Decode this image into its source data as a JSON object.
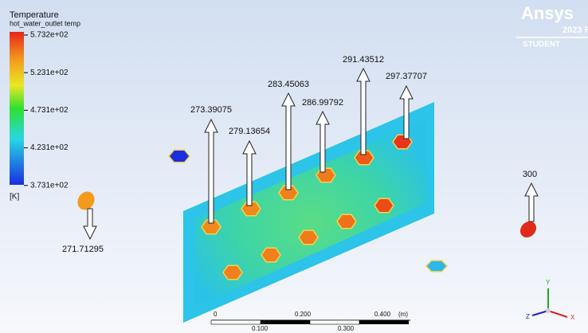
{
  "legend": {
    "title": "Temperature",
    "subtitle": "hot_water_outlet temp",
    "ticks": [
      "5.732e+02",
      "5.231e+02",
      "4.731e+02",
      "4.231e+02",
      "3.731e+02"
    ],
    "unit": "[K]"
  },
  "annotations": [
    "273.39075",
    "279.13654",
    "283.45063",
    "286.99792",
    "291.43512",
    "297.37707",
    "271.71295",
    "300"
  ],
  "scale_bar": {
    "top_labels": [
      "0",
      "0.200",
      "0.400",
      "(m)"
    ],
    "bottom_labels": [
      "0.100",
      "0.300"
    ]
  },
  "logo": {
    "brand": "Ansys",
    "version": "2023 R",
    "edition": "STUDENT"
  },
  "triad": {
    "y": "Y",
    "z": "Z",
    "x": "X"
  }
}
